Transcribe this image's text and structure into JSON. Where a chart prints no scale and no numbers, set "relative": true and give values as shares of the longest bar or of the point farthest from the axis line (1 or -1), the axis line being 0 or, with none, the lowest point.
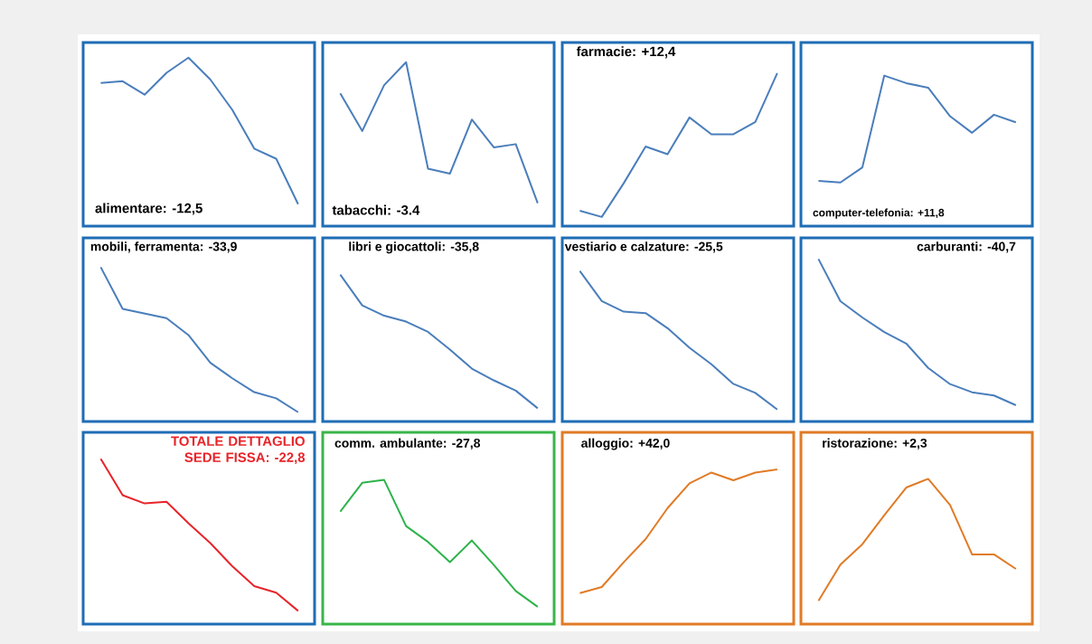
{
  "chart_data": [
    {
      "type": "line",
      "title": "alimentare: -12,5",
      "categories": [
        null,
        null,
        null,
        null,
        null,
        null,
        null,
        null,
        null,
        null
      ],
      "values": [
        0.85,
        0.86,
        0.78,
        0.91,
        1,
        0.87,
        0.69,
        0.46,
        0.4,
        0.13
      ],
      "color": "#4a7ebb",
      "relative": true
    },
    {
      "type": "line",
      "title": "tabacchi: -3.4",
      "categories": [
        null,
        null,
        null,
        null,
        null,
        null,
        null,
        null,
        null,
        null
      ],
      "values": [
        0.81,
        0.58,
        0.86,
        1,
        0.35,
        0.32,
        0.65,
        0.48,
        0.5,
        0.14
      ],
      "color": "#4a7ebb",
      "relative": true
    },
    {
      "type": "line",
      "title": "farmacie: +12,4",
      "categories": [
        null,
        null,
        null,
        null,
        null,
        null,
        null,
        null,
        null,
        null
      ],
      "values": [
        0.1,
        0.06,
        0.28,
        0.52,
        0.47,
        0.71,
        0.6,
        0.6,
        0.68,
        1
      ],
      "color": "#4a7ebb",
      "relative": true
    },
    {
      "type": "line",
      "title": "computer-telefonia: +11,8",
      "categories": [
        null,
        null,
        null,
        null,
        null,
        null,
        null,
        null,
        null,
        null
      ],
      "values": [
        0.3,
        0.29,
        0.39,
        1,
        0.95,
        0.92,
        0.73,
        0.62,
        0.74,
        0.69
      ],
      "color": "#4a7ebb",
      "relative": true
    },
    {
      "type": "line",
      "title": "mobili, ferramenta: -33,9",
      "categories": [
        null,
        null,
        null,
        null,
        null,
        null,
        null,
        null,
        null,
        null
      ],
      "values": [
        1,
        0.73,
        0.7,
        0.67,
        0.56,
        0.38,
        0.28,
        0.19,
        0.15,
        0.06
      ],
      "color": "#4a7ebb",
      "relative": true
    },
    {
      "type": "line",
      "title": "libri e giocattoli: -35,8",
      "categories": [
        null,
        null,
        null,
        null,
        null,
        null,
        null,
        null,
        null,
        null
      ],
      "values": [
        1,
        0.79,
        0.72,
        0.68,
        0.61,
        0.49,
        0.36,
        0.28,
        0.21,
        0.09
      ],
      "color": "#4a7ebb",
      "relative": true
    },
    {
      "type": "line",
      "title": "vestiario e calzature: -25,5",
      "categories": [
        null,
        null,
        null,
        null,
        null,
        null,
        null,
        null,
        null,
        null
      ],
      "values": [
        1,
        0.8,
        0.73,
        0.72,
        0.62,
        0.49,
        0.38,
        0.25,
        0.19,
        0.08
      ],
      "color": "#4a7ebb",
      "relative": true
    },
    {
      "type": "line",
      "title": "carburanti: -40,7",
      "categories": [
        null,
        null,
        null,
        null,
        null,
        null,
        null,
        null,
        null,
        null
      ],
      "values": [
        1,
        0.74,
        0.64,
        0.55,
        0.48,
        0.33,
        0.23,
        0.18,
        0.16,
        0.1
      ],
      "color": "#4a7ebb",
      "relative": true
    },
    {
      "type": "line",
      "title": "TOTALE DETTAGLIO SEDE FISSA: -22,8",
      "categories": [
        null,
        null,
        null,
        null,
        null,
        null,
        null,
        null,
        null,
        null
      ],
      "values": [
        1,
        0.78,
        0.73,
        0.74,
        0.61,
        0.49,
        0.35,
        0.23,
        0.19,
        0.08
      ],
      "color": "#e8242a",
      "relative": true
    },
    {
      "type": "line",
      "title": "comm. ambulante: -27,8",
      "categories": [
        null,
        null,
        null,
        null,
        null,
        null,
        null,
        null,
        null,
        null
      ],
      "values": [
        0.78,
        0.98,
        1,
        0.68,
        0.57,
        0.43,
        0.58,
        0.41,
        0.23,
        0.12
      ],
      "color": "#2db34a",
      "relative": true
    },
    {
      "type": "line",
      "title": "alloggio: +42,0",
      "categories": [
        null,
        null,
        null,
        null,
        null,
        null,
        null,
        null,
        null,
        null
      ],
      "values": [
        0.2,
        0.24,
        0.4,
        0.55,
        0.75,
        0.91,
        0.98,
        0.93,
        0.98,
        1
      ],
      "color": "#e07b26",
      "relative": true
    },
    {
      "type": "line",
      "title": "ristorazione: +2,3",
      "categories": [
        null,
        null,
        null,
        null,
        null,
        null,
        null,
        null,
        null,
        null
      ],
      "values": [
        0.16,
        0.41,
        0.55,
        0.75,
        0.94,
        1,
        0.82,
        0.48,
        0.48,
        0.38
      ],
      "color": "#e07b26",
      "relative": true
    }
  ]
}
